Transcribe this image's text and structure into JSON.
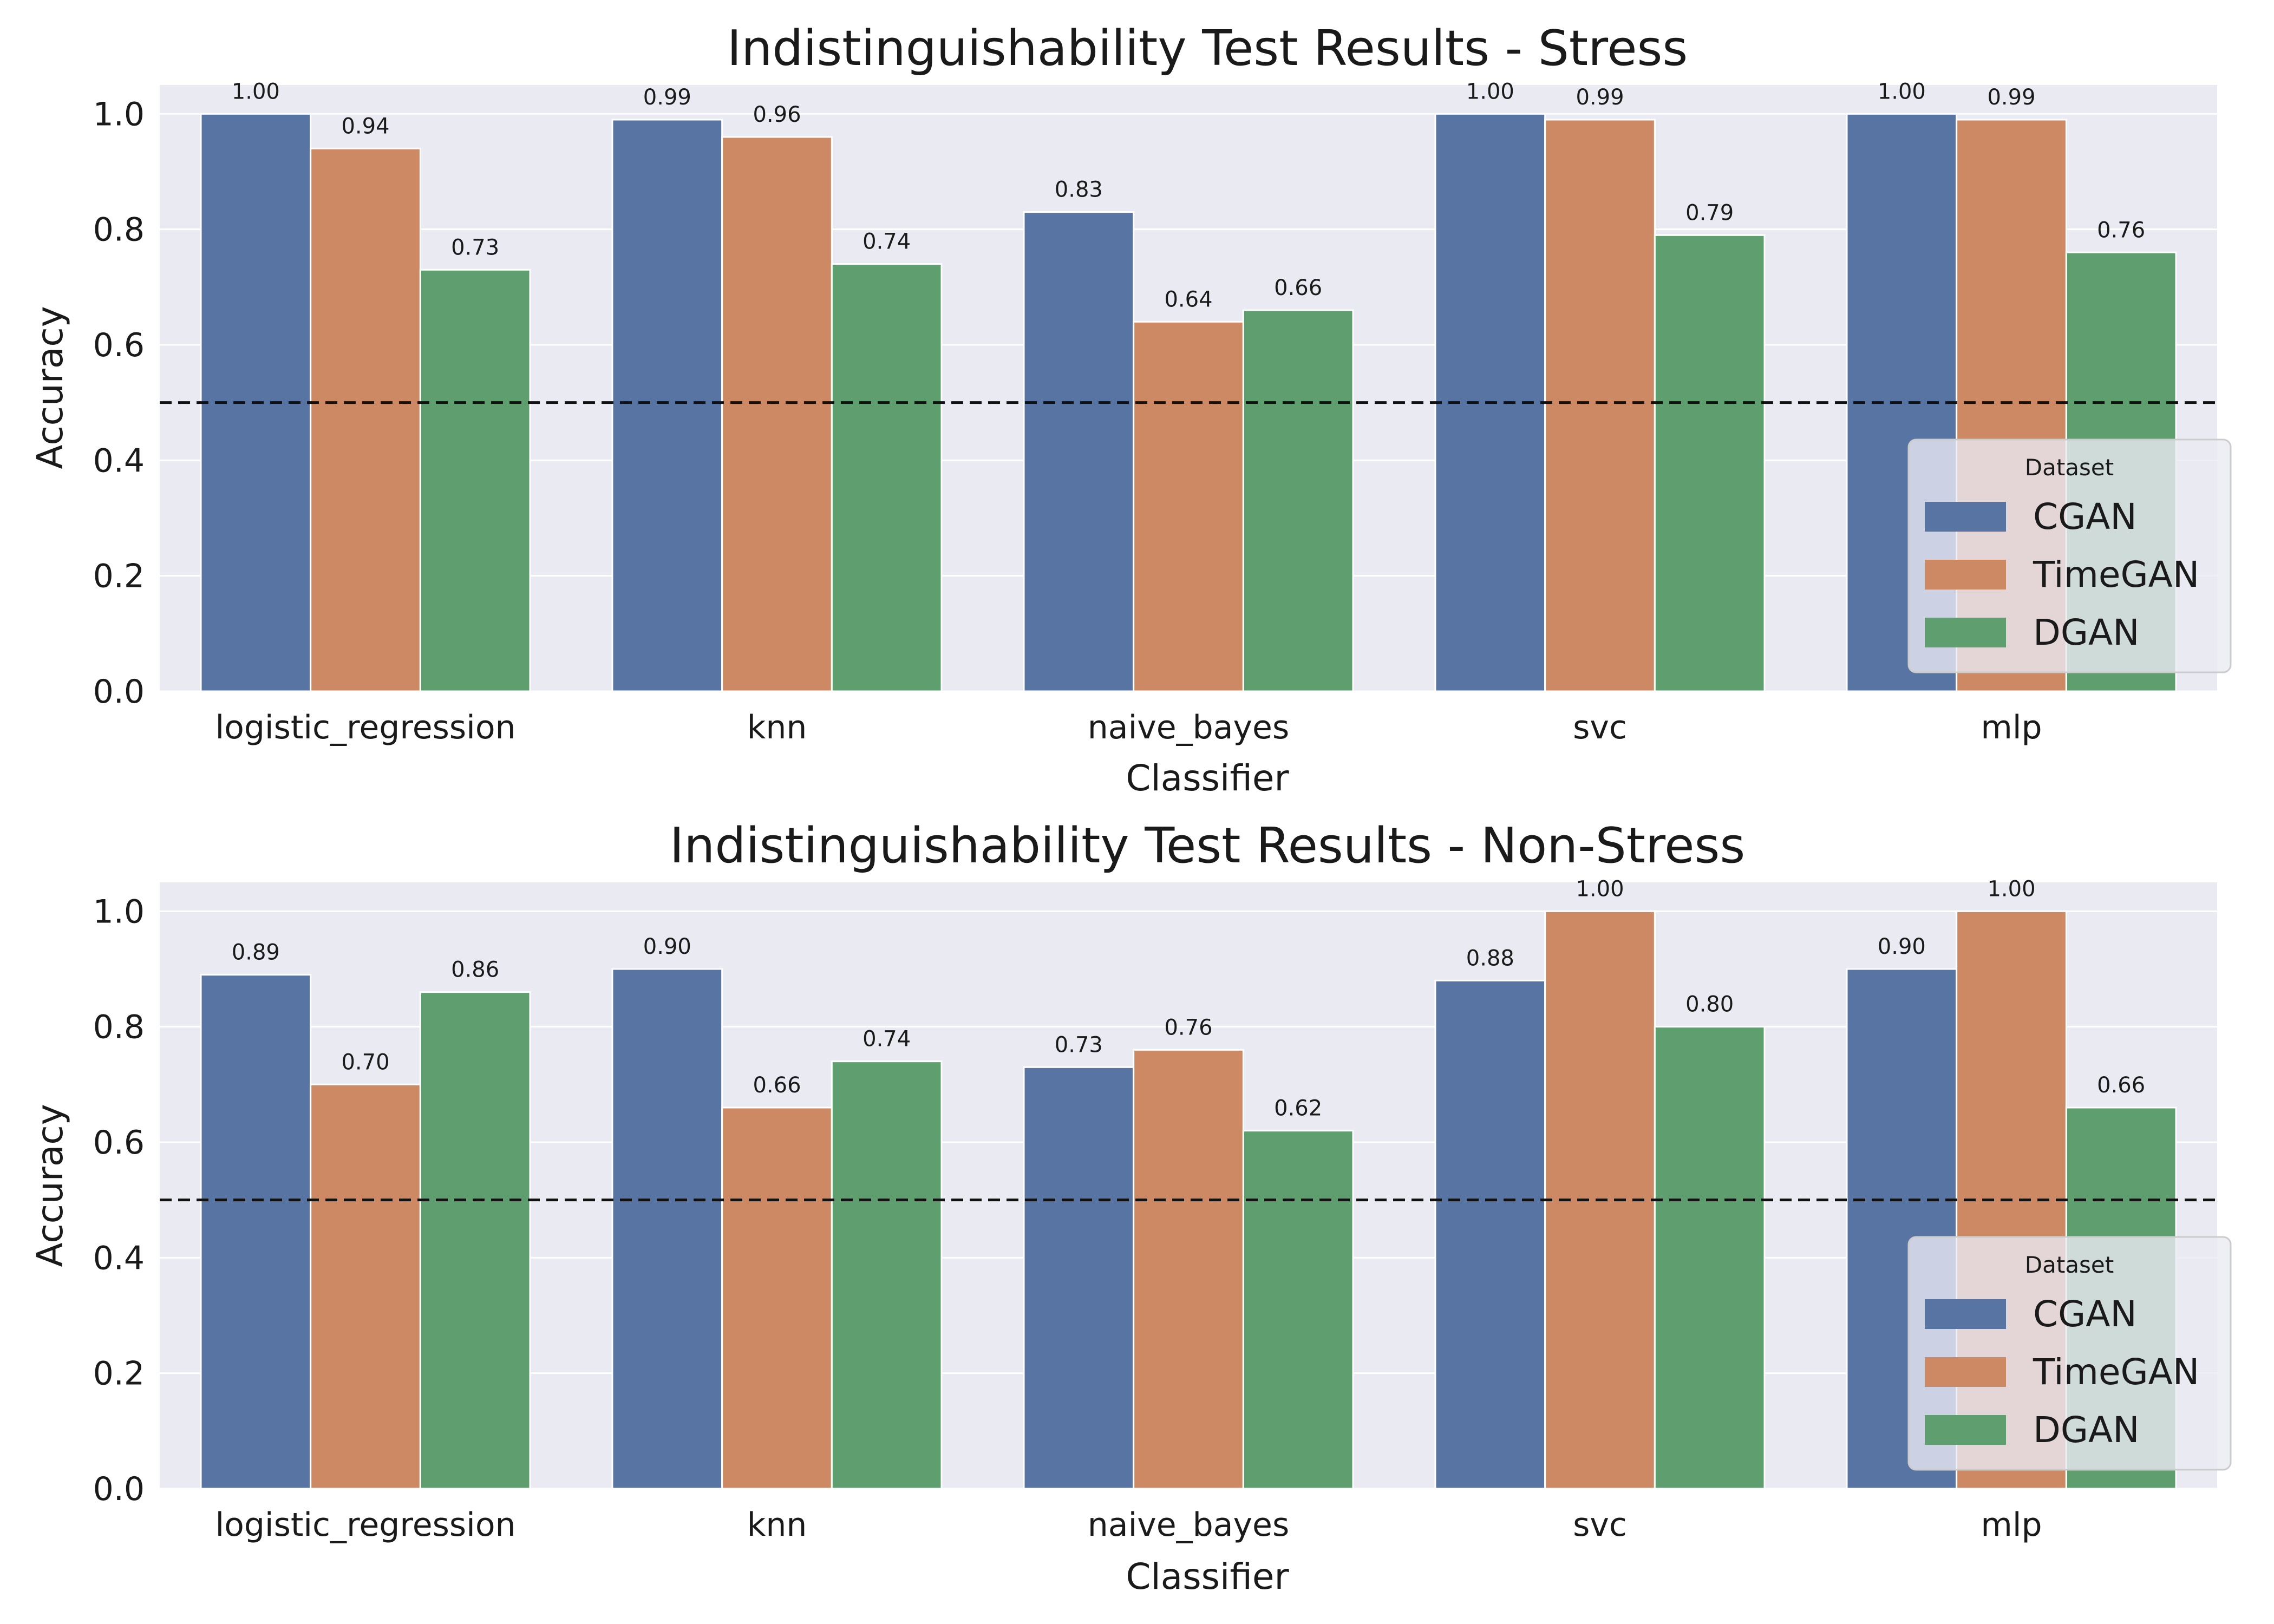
{
  "chart_data": [
    {
      "type": "bar",
      "title": "Indistinguishability Test Results - Stress",
      "xlabel": "Classifier",
      "ylabel": "Accuracy",
      "ylim": [
        0,
        1.05
      ],
      "yticks": [
        0.0,
        0.2,
        0.4,
        0.6,
        0.8,
        1.0
      ],
      "ytick_labels": [
        "0.0",
        "0.2",
        "0.4",
        "0.6",
        "0.8",
        "1.0"
      ],
      "reference_line": 0.5,
      "grid": true,
      "categories": [
        "logistic_regression",
        "knn",
        "naive_bayes",
        "svc",
        "mlp"
      ],
      "legend": {
        "title": "Dataset",
        "placement": "lower-right"
      },
      "series": [
        {
          "name": "CGAN",
          "color": "#5874a3",
          "values": [
            1.0,
            0.99,
            0.83,
            1.0,
            1.0
          ],
          "labels": [
            "1.00",
            "0.99",
            "0.83",
            "1.00",
            "1.00"
          ]
        },
        {
          "name": "TimeGAN",
          "color": "#cc8963",
          "values": [
            0.94,
            0.96,
            0.64,
            0.99,
            0.99
          ],
          "labels": [
            "0.94",
            "0.96",
            "0.64",
            "0.99",
            "0.99"
          ]
        },
        {
          "name": "DGAN",
          "color": "#5f9e6e",
          "values": [
            0.73,
            0.74,
            0.66,
            0.79,
            0.76
          ],
          "labels": [
            "0.73",
            "0.74",
            "0.66",
            "0.79",
            "0.76"
          ]
        }
      ]
    },
    {
      "type": "bar",
      "title": "Indistinguishability Test Results - Non-Stress",
      "xlabel": "Classifier",
      "ylabel": "Accuracy",
      "ylim": [
        0,
        1.05
      ],
      "yticks": [
        0.0,
        0.2,
        0.4,
        0.6,
        0.8,
        1.0
      ],
      "ytick_labels": [
        "0.0",
        "0.2",
        "0.4",
        "0.6",
        "0.8",
        "1.0"
      ],
      "reference_line": 0.5,
      "grid": true,
      "categories": [
        "logistic_regression",
        "knn",
        "naive_bayes",
        "svc",
        "mlp"
      ],
      "legend": {
        "title": "Dataset",
        "placement": "lower-right"
      },
      "series": [
        {
          "name": "CGAN",
          "color": "#5874a3",
          "values": [
            0.89,
            0.9,
            0.73,
            0.88,
            0.9
          ],
          "labels": [
            "0.89",
            "0.90",
            "0.73",
            "0.88",
            "0.90"
          ]
        },
        {
          "name": "TimeGAN",
          "color": "#cc8963",
          "values": [
            0.7,
            0.66,
            0.76,
            1.0,
            1.0
          ],
          "labels": [
            "0.70",
            "0.66",
            "0.76",
            "1.00",
            "1.00"
          ]
        },
        {
          "name": "DGAN",
          "color": "#5f9e6e",
          "values": [
            0.86,
            0.74,
            0.62,
            0.8,
            0.66
          ],
          "labels": [
            "0.86",
            "0.74",
            "0.62",
            "0.80",
            "0.66"
          ]
        }
      ]
    }
  ]
}
